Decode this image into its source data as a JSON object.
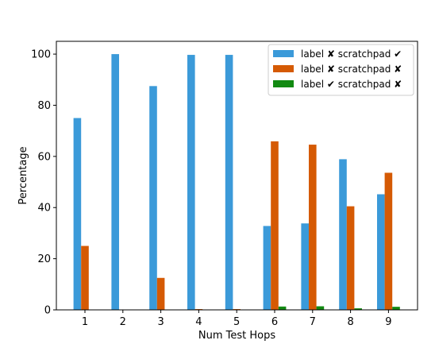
{
  "chart_data": {
    "type": "bar",
    "xlabel": "Num Test Hops",
    "ylabel": "Percentage",
    "categories": [
      "1",
      "2",
      "3",
      "4",
      "5",
      "6",
      "7",
      "8",
      "9"
    ],
    "ylim": [
      0,
      105
    ],
    "yticks": [
      0,
      20,
      40,
      60,
      80,
      100
    ],
    "grid": false,
    "legend_position": "top-right",
    "series": [
      {
        "name": "label ✘ scratchpad ✔",
        "color": "#3b9ad9",
        "values": [
          75,
          100,
          87.5,
          99.7,
          99.7,
          32.8,
          33.8,
          58.9,
          45.2
        ]
      },
      {
        "name": "label ✘ scratchpad ✘",
        "color": "#d55a04",
        "values": [
          25,
          0,
          12.5,
          0.3,
          0.3,
          65.9,
          64.6,
          40.5,
          53.6
        ]
      },
      {
        "name": "label ✔ scratchpad ✘",
        "color": "#128a12",
        "values": [
          0,
          0,
          0,
          0,
          0,
          1.3,
          1.4,
          0.6,
          1.2
        ]
      }
    ]
  }
}
